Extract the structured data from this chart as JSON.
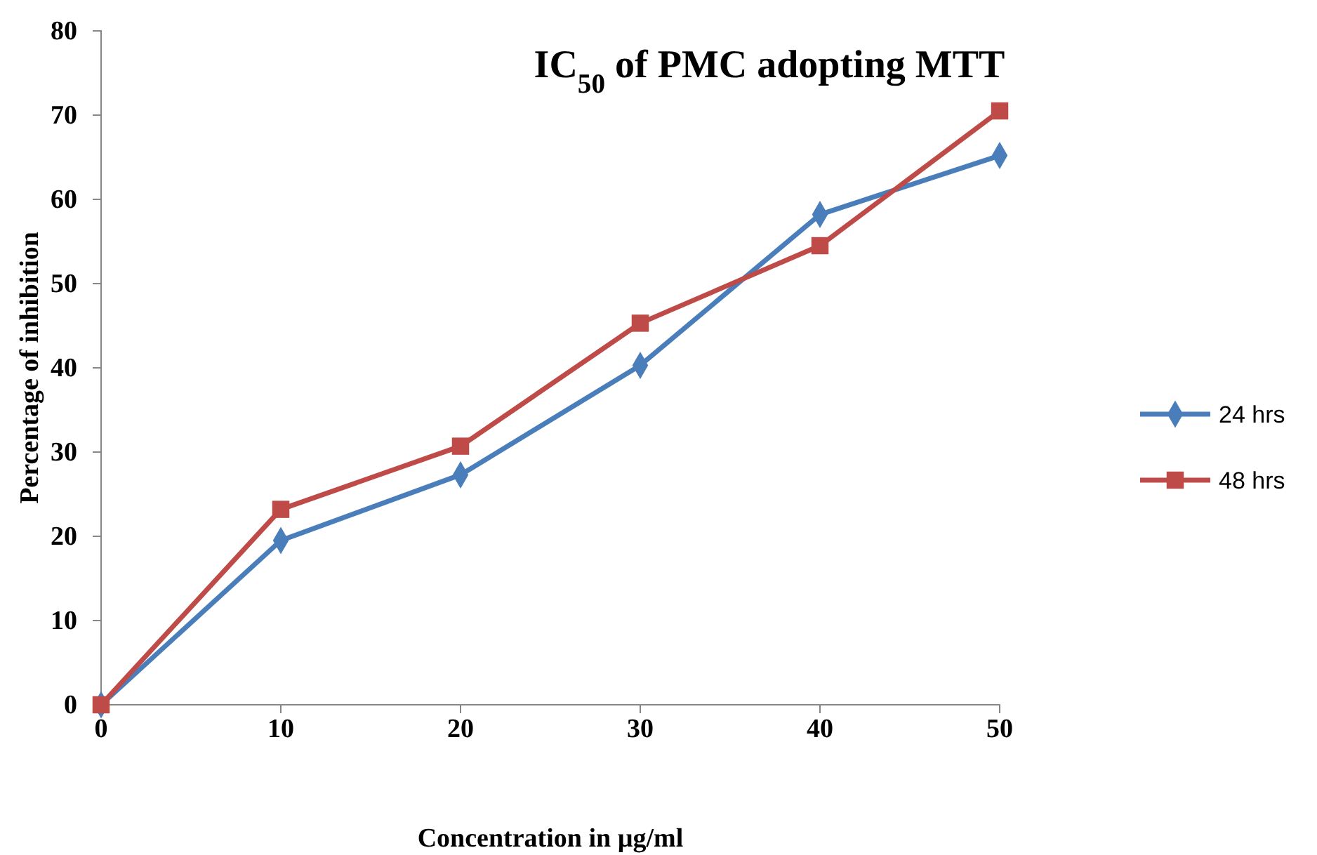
{
  "chart_data": {
    "type": "line",
    "title": "IC$_{50}$ of PMC adopting MTT",
    "xlabel": "Concentration in µg/ml",
    "ylabel": "Percentage of inhibition",
    "x": [
      0,
      10,
      20,
      30,
      40,
      50
    ],
    "xlim": [
      0,
      50
    ],
    "xticks": [
      0,
      10,
      20,
      30,
      40,
      50
    ],
    "ylim": [
      0,
      80
    ],
    "yticks": [
      0,
      10,
      20,
      30,
      40,
      50,
      60,
      70,
      80
    ],
    "grid": false,
    "legend": "right",
    "series": [
      {
        "name": "24 hrs",
        "color": "#4a7ebb",
        "marker": "diamond",
        "values": [
          0,
          19.5,
          27.3,
          40.3,
          58.2,
          65.2
        ]
      },
      {
        "name": "48 hrs",
        "color": "#be4b48",
        "marker": "square",
        "values": [
          0,
          23.2,
          30.7,
          45.3,
          54.5,
          70.5
        ]
      }
    ]
  }
}
